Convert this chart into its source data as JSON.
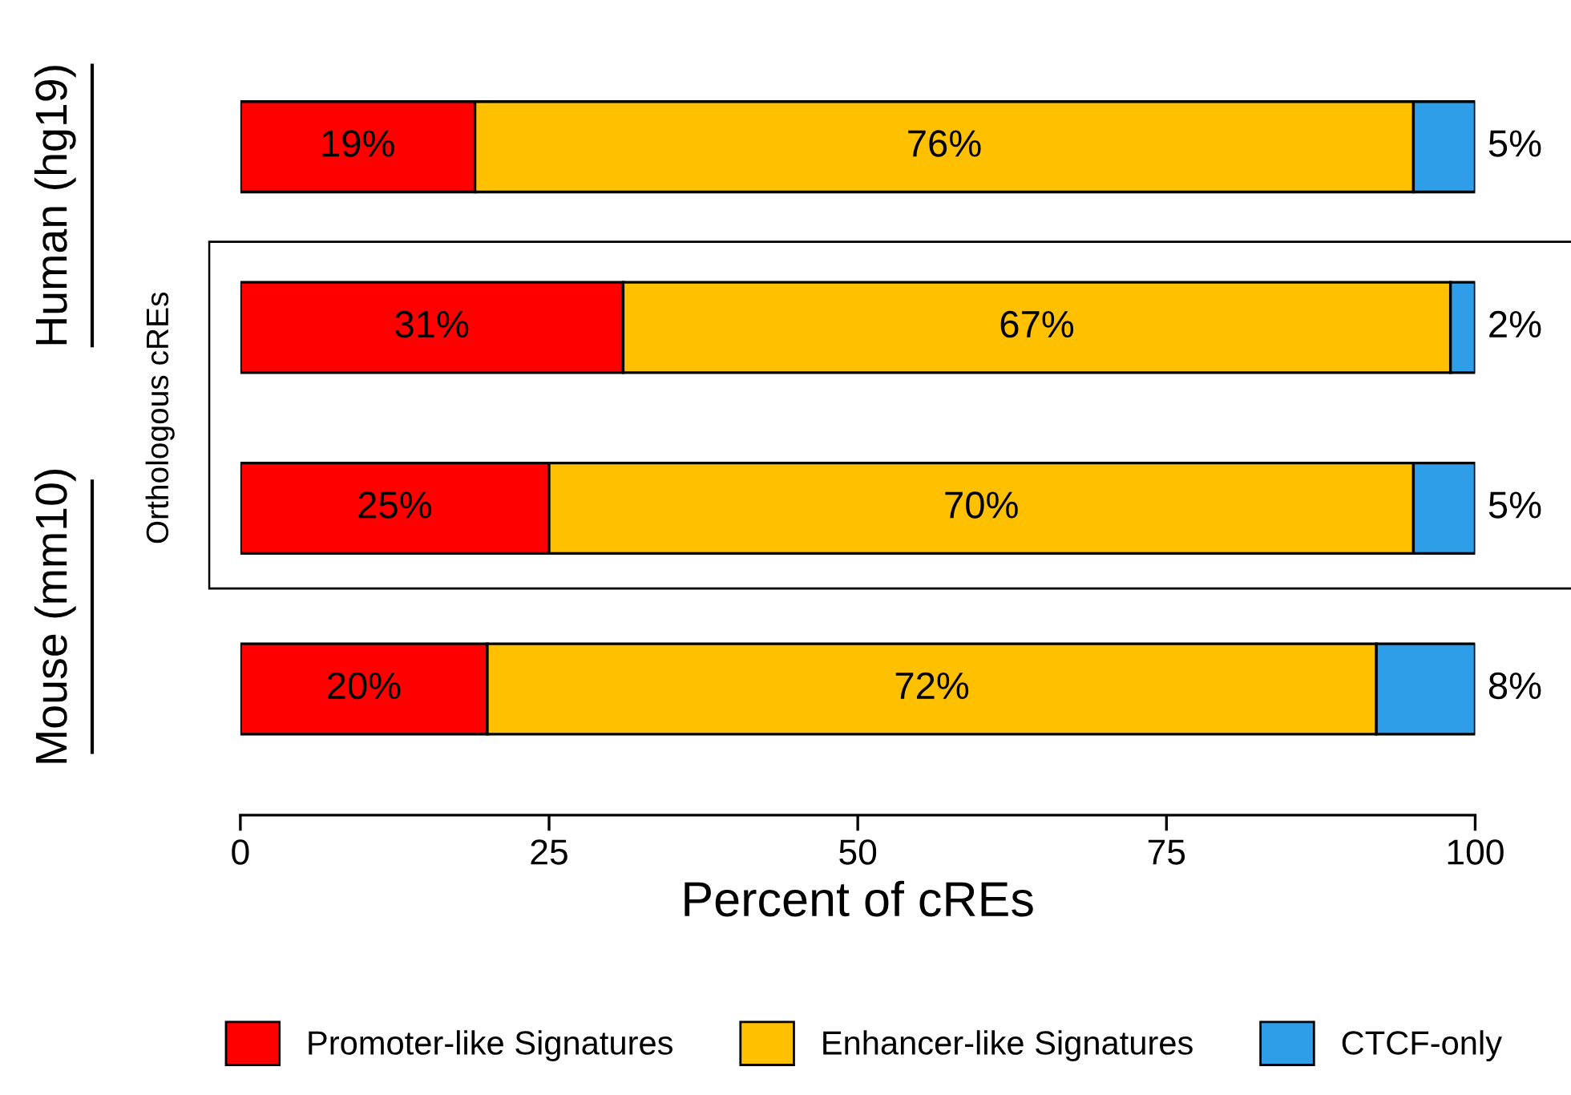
{
  "chart_data": {
    "type": "bar",
    "orientation": "horizontal",
    "stacked": true,
    "categories": [
      null,
      null,
      null,
      null
    ],
    "series": [
      {
        "name": "Promoter-like Signatures",
        "color": "#ff0000",
        "values": [
          19,
          31,
          25,
          20
        ],
        "value_labels": [
          "19%",
          "31%",
          "25%",
          "20%"
        ]
      },
      {
        "name": "Enhancer-like Signatures",
        "color": "#ffc000",
        "values": [
          76,
          67,
          70,
          72
        ],
        "value_labels": [
          "76%",
          "67%",
          "70%",
          "72%"
        ]
      },
      {
        "name": "CTCF-only",
        "color": "#2f9ee8",
        "values": [
          5,
          2,
          5,
          8
        ],
        "value_labels": [
          "5%",
          "2%",
          "5%",
          "8%"
        ]
      }
    ],
    "xlabel": "Percent of cREs",
    "xlim": [
      0,
      100
    ],
    "xticks": [
      0,
      25,
      50,
      75,
      100
    ],
    "tick_labels": "x",
    "grid": false,
    "legend": "bottom",
    "annotations": [
      "Human (hg19)",
      "Mouse (mm10)",
      "Orthologous cREs"
    ]
  }
}
